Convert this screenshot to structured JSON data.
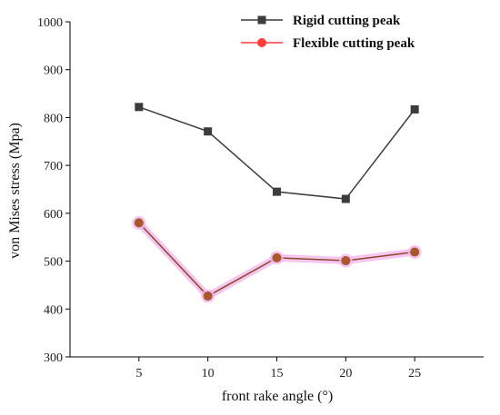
{
  "chart_data": {
    "type": "line",
    "xlabel": "front rake angle (°)",
    "ylabel": "von Mises stress (Mpa)",
    "x": [
      5,
      10,
      15,
      20,
      25
    ],
    "xlim": [
      0,
      30
    ],
    "ylim": [
      300,
      1000
    ],
    "xticks": [
      5,
      10,
      15,
      20,
      25
    ],
    "yticks": [
      300,
      400,
      500,
      600,
      700,
      800,
      900,
      1000
    ],
    "grid": false,
    "legend_position": "top-right",
    "series": [
      {
        "name": "Rigid cutting peak",
        "values": [
          822,
          771,
          645,
          630,
          817
        ],
        "color": "#3c3c3c",
        "marker": "square"
      },
      {
        "name": "Flexible cutting peak",
        "values": [
          580,
          427,
          507,
          501,
          519
        ],
        "color": "#ff3b3b",
        "line_color": "#8b4a2a",
        "marker_fill": "#a9572f",
        "highlight": "#f4b6ec",
        "marker": "circle"
      }
    ]
  }
}
